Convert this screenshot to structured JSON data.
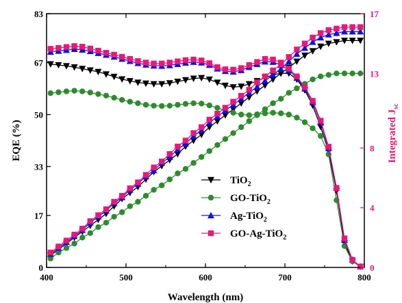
{
  "chart_data": {
    "type": "line",
    "xlabel": "Wavelength (nm)",
    "ylabel": "EQE (%)",
    "y2label_main": "Integrated J",
    "y2label_sub": "sc",
    "xlim": [
      400,
      800
    ],
    "ylim": [
      0,
      83
    ],
    "y2lim": [
      0,
      17
    ],
    "x_ticks": [
      400,
      500,
      600,
      700,
      800
    ],
    "y_ticks": [
      0,
      17,
      33,
      50,
      67,
      83
    ],
    "y2_ticks": [
      0,
      4,
      8,
      13,
      17
    ],
    "x_tick_labels": [
      "400",
      "500",
      "600",
      "700",
      "800"
    ],
    "y_tick_labels": [
      "0",
      "17",
      "33",
      "50",
      "67",
      "83"
    ],
    "y2_tick_labels": [
      "0",
      "4",
      "8",
      "13",
      "17"
    ],
    "legend_position": "center",
    "x": [
      405,
      415,
      425,
      435,
      445,
      455,
      465,
      475,
      485,
      495,
      505,
      515,
      525,
      535,
      545,
      555,
      565,
      575,
      585,
      595,
      605,
      615,
      625,
      635,
      645,
      655,
      665,
      675,
      685,
      695,
      705,
      715,
      725,
      735,
      745,
      755,
      765,
      775,
      785,
      795
    ],
    "series": [
      {
        "name": "TiO",
        "sub": "2",
        "marker": "triangle-down",
        "color": "#000000",
        "eqe": [
          66.5,
          66.2,
          65.9,
          65.5,
          65.0,
          64.5,
          64.0,
          63.2,
          62.4,
          61.6,
          61.0,
          60.5,
          60.2,
          60.0,
          60.0,
          60.3,
          60.8,
          61.3,
          61.8,
          62.0,
          61.5,
          60.5,
          59.5,
          59.0,
          59.2,
          60.0,
          61.0,
          62.0,
          63.0,
          63.5,
          63.5,
          61.5,
          58.0,
          53.0,
          46.0,
          38.0,
          25.0,
          8.0,
          2.0,
          0.3
        ],
        "jsc": [
          0.8,
          1.2,
          1.6,
          2.0,
          2.4,
          2.8,
          3.2,
          3.6,
          4.1,
          4.6,
          5.0,
          5.4,
          5.9,
          6.4,
          6.8,
          7.2,
          7.6,
          8.1,
          8.5,
          8.9,
          9.4,
          9.8,
          10.2,
          10.6,
          11.0,
          11.4,
          11.8,
          12.2,
          12.6,
          13.0,
          13.4,
          13.8,
          14.2,
          14.5,
          14.8,
          15.0,
          15.1,
          15.2,
          15.2,
          15.2
        ]
      },
      {
        "name": "GO-TiO",
        "sub": "2",
        "marker": "circle",
        "color": "#2e8b2e",
        "eqe": [
          57.0,
          57.3,
          57.6,
          57.8,
          57.6,
          57.2,
          56.7,
          56.2,
          55.5,
          54.8,
          54.2,
          53.7,
          53.2,
          52.9,
          52.8,
          52.9,
          53.2,
          53.5,
          53.7,
          53.6,
          53.0,
          52.2,
          51.4,
          50.6,
          50.0,
          49.8,
          50.1,
          50.4,
          50.6,
          50.4,
          50.0,
          49.0,
          47.5,
          45.5,
          43.0,
          37.0,
          22.0,
          7.0,
          2.0,
          0.3
        ],
        "jsc": [
          0.6,
          1.0,
          1.3,
          1.6,
          2.0,
          2.3,
          2.7,
          3.0,
          3.4,
          3.7,
          4.1,
          4.4,
          4.8,
          5.2,
          5.5,
          5.9,
          6.3,
          6.6,
          7.0,
          7.4,
          7.8,
          8.2,
          8.6,
          9.0,
          9.4,
          9.8,
          10.2,
          10.6,
          11.0,
          11.3,
          11.7,
          12.0,
          12.3,
          12.6,
          12.8,
          12.9,
          13.0,
          13.0,
          13.0,
          13.0
        ]
      },
      {
        "name": "Ag-TiO",
        "sub": "2",
        "marker": "triangle-up",
        "color": "#1010e0",
        "eqe": [
          70.5,
          70.8,
          71.1,
          71.4,
          71.2,
          70.7,
          70.1,
          69.5,
          68.9,
          68.2,
          67.5,
          66.8,
          66.3,
          66.0,
          65.9,
          66.1,
          66.5,
          66.9,
          67.2,
          67.0,
          66.2,
          65.0,
          64.2,
          64.0,
          64.5,
          65.5,
          66.5,
          67.3,
          67.2,
          66.2,
          64.5,
          62.0,
          58.5,
          54.0,
          47.5,
          39.0,
          26.0,
          9.0,
          2.5,
          0.3
        ],
        "jsc": [
          0.9,
          1.3,
          1.7,
          2.1,
          2.5,
          3.0,
          3.4,
          3.8,
          4.3,
          4.7,
          5.2,
          5.6,
          6.1,
          6.5,
          7.0,
          7.4,
          7.9,
          8.3,
          8.8,
          9.2,
          9.7,
          10.1,
          10.5,
          10.9,
          11.3,
          11.7,
          12.1,
          12.5,
          12.9,
          13.3,
          13.8,
          14.3,
          14.7,
          15.1,
          15.4,
          15.6,
          15.7,
          15.8,
          15.8,
          15.8
        ]
      },
      {
        "name": "GO-Ag-TiO",
        "sub": "2",
        "marker": "square",
        "color": "#e8187a",
        "eqe": [
          71.5,
          71.8,
          72.1,
          72.4,
          72.2,
          71.6,
          70.9,
          70.2,
          69.6,
          68.9,
          68.2,
          67.5,
          67.0,
          66.7,
          66.7,
          67.0,
          67.4,
          67.8,
          68.0,
          67.7,
          66.8,
          65.5,
          64.8,
          64.7,
          65.2,
          66.2,
          67.2,
          68.2,
          68.0,
          67.0,
          65.0,
          62.5,
          59.0,
          54.5,
          48.0,
          39.5,
          26.0,
          9.5,
          2.5,
          0.3
        ],
        "jsc": [
          1.0,
          1.4,
          1.8,
          2.2,
          2.6,
          3.1,
          3.5,
          3.9,
          4.4,
          4.8,
          5.3,
          5.7,
          6.2,
          6.7,
          7.1,
          7.6,
          8.1,
          8.5,
          9.0,
          9.4,
          9.9,
          10.3,
          10.7,
          11.1,
          11.5,
          11.9,
          12.4,
          12.8,
          13.2,
          13.6,
          14.1,
          14.6,
          15.0,
          15.4,
          15.7,
          15.9,
          16.0,
          16.1,
          16.1,
          16.1
        ]
      }
    ]
  }
}
